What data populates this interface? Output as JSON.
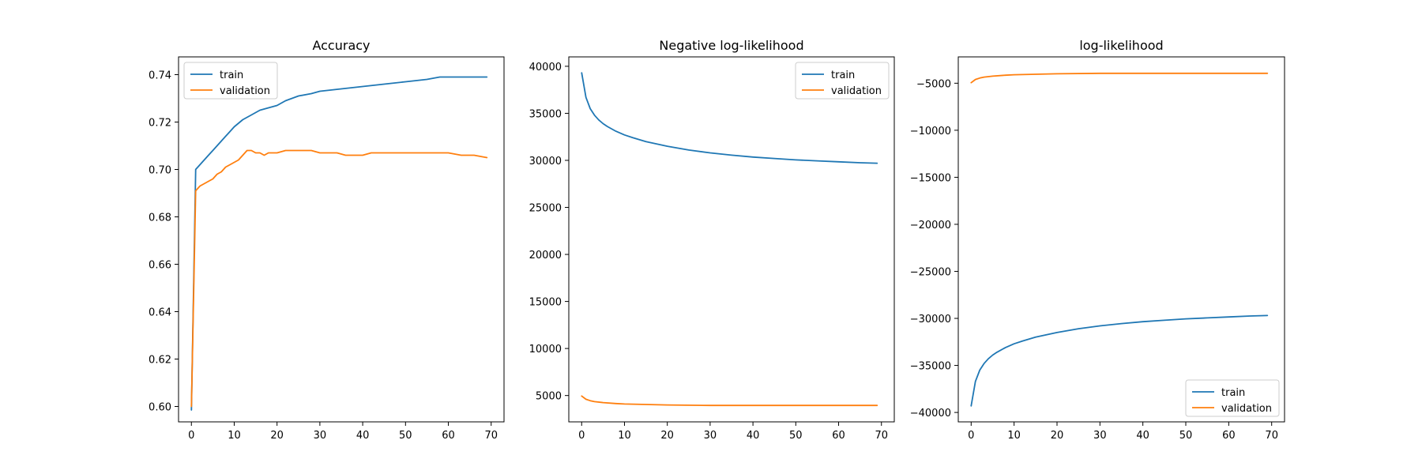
{
  "colors": {
    "train": "#1f77b4",
    "validation": "#ff7f0e"
  },
  "chart_data": [
    {
      "type": "line",
      "title": "Accuracy",
      "xlim": [
        -3,
        73
      ],
      "ylim": [
        0.5935,
        0.7475
      ],
      "xticks": [
        0,
        10,
        20,
        30,
        40,
        50,
        60,
        70
      ],
      "yticks": [
        0.6,
        0.62,
        0.64,
        0.66,
        0.68,
        0.7,
        0.72,
        0.74
      ],
      "ytick_labels": [
        "0.60",
        "0.62",
        "0.64",
        "0.66",
        "0.68",
        "0.70",
        "0.72",
        "0.74"
      ],
      "legend_position": "upper-left",
      "series": [
        {
          "name": "train",
          "color": "#1f77b4",
          "x": [
            0,
            1,
            2,
            3,
            4,
            5,
            6,
            7,
            8,
            9,
            10,
            12,
            14,
            16,
            18,
            20,
            22,
            25,
            28,
            30,
            35,
            40,
            45,
            50,
            55,
            58,
            60,
            63,
            66,
            69
          ],
          "y": [
            0.5985,
            0.7,
            0.702,
            0.704,
            0.706,
            0.708,
            0.71,
            0.712,
            0.714,
            0.716,
            0.718,
            0.721,
            0.723,
            0.725,
            0.726,
            0.727,
            0.729,
            0.731,
            0.732,
            0.733,
            0.734,
            0.735,
            0.736,
            0.737,
            0.738,
            0.739,
            0.739,
            0.739,
            0.739,
            0.739
          ]
        },
        {
          "name": "validation",
          "color": "#ff7f0e",
          "x": [
            0,
            1,
            2,
            3,
            4,
            5,
            6,
            7,
            8,
            9,
            10,
            11,
            12,
            13,
            14,
            15,
            16,
            17,
            18,
            19,
            20,
            22,
            24,
            26,
            28,
            30,
            32,
            34,
            36,
            38,
            40,
            42,
            45,
            48,
            50,
            55,
            60,
            63,
            66,
            69
          ],
          "y": [
            0.6,
            0.691,
            0.693,
            0.694,
            0.695,
            0.696,
            0.698,
            0.699,
            0.701,
            0.702,
            0.703,
            0.704,
            0.706,
            0.708,
            0.708,
            0.707,
            0.707,
            0.706,
            0.707,
            0.707,
            0.707,
            0.708,
            0.708,
            0.708,
            0.708,
            0.707,
            0.707,
            0.707,
            0.706,
            0.706,
            0.706,
            0.707,
            0.707,
            0.707,
            0.707,
            0.707,
            0.707,
            0.706,
            0.706,
            0.705
          ]
        }
      ]
    },
    {
      "type": "line",
      "title": "Negative log-likelihood",
      "xlim": [
        -3,
        73
      ],
      "ylim": [
        2200,
        41000
      ],
      "xticks": [
        0,
        10,
        20,
        30,
        40,
        50,
        60,
        70
      ],
      "yticks": [
        5000,
        10000,
        15000,
        20000,
        25000,
        30000,
        35000,
        40000
      ],
      "ytick_labels": [
        "5000",
        "10000",
        "15000",
        "20000",
        "25000",
        "30000",
        "35000",
        "40000"
      ],
      "legend_position": "upper-right",
      "series": [
        {
          "name": "train",
          "color": "#1f77b4",
          "x": [
            0,
            1,
            2,
            3,
            4,
            5,
            6,
            8,
            10,
            12,
            15,
            20,
            25,
            30,
            35,
            40,
            45,
            50,
            55,
            60,
            65,
            69
          ],
          "y": [
            39300,
            36700,
            35500,
            34800,
            34300,
            33900,
            33600,
            33100,
            32700,
            32400,
            32000,
            31500,
            31100,
            30800,
            30550,
            30350,
            30200,
            30050,
            29950,
            29850,
            29750,
            29700
          ]
        },
        {
          "name": "validation",
          "color": "#ff7f0e",
          "x": [
            0,
            1,
            2,
            3,
            5,
            8,
            10,
            15,
            20,
            30,
            40,
            50,
            60,
            69
          ],
          "y": [
            4950,
            4600,
            4450,
            4350,
            4250,
            4150,
            4100,
            4050,
            4000,
            3950,
            3950,
            3950,
            3950,
            3950
          ]
        }
      ]
    },
    {
      "type": "line",
      "title": "log-likelihood",
      "xlim": [
        -3,
        73
      ],
      "ylim": [
        -41000,
        -2200
      ],
      "xticks": [
        0,
        10,
        20,
        30,
        40,
        50,
        60,
        70
      ],
      "yticks": [
        -5000,
        -10000,
        -15000,
        -20000,
        -25000,
        -30000,
        -35000,
        -40000
      ],
      "ytick_labels": [
        "−5000",
        "−10000",
        "−15000",
        "−20000",
        "−25000",
        "−30000",
        "−35000",
        "−40000"
      ],
      "legend_position": "lower-right",
      "series": [
        {
          "name": "train",
          "color": "#1f77b4",
          "x": [
            0,
            1,
            2,
            3,
            4,
            5,
            6,
            8,
            10,
            12,
            15,
            20,
            25,
            30,
            35,
            40,
            45,
            50,
            55,
            60,
            65,
            69
          ],
          "y": [
            -39300,
            -36700,
            -35500,
            -34800,
            -34300,
            -33900,
            -33600,
            -33100,
            -32700,
            -32400,
            -32000,
            -31500,
            -31100,
            -30800,
            -30550,
            -30350,
            -30200,
            -30050,
            -29950,
            -29850,
            -29750,
            -29700
          ]
        },
        {
          "name": "validation",
          "color": "#ff7f0e",
          "x": [
            0,
            1,
            2,
            3,
            5,
            8,
            10,
            15,
            20,
            30,
            40,
            50,
            60,
            69
          ],
          "y": [
            -4950,
            -4600,
            -4450,
            -4350,
            -4250,
            -4150,
            -4100,
            -4050,
            -4000,
            -3950,
            -3950,
            -3950,
            -3950,
            -3950
          ]
        }
      ]
    }
  ]
}
